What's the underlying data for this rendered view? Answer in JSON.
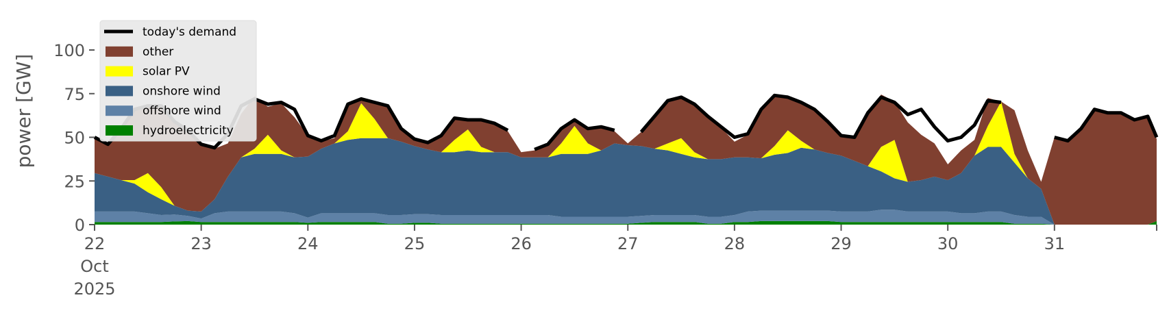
{
  "chart_data": {
    "type": "area",
    "ylabel": "power [GW]",
    "ylim": [
      0,
      120
    ],
    "y_ticks": [
      0,
      25,
      50,
      75,
      100
    ],
    "x_range": [
      "2025-10-22",
      "2025-10-31T23:00"
    ],
    "x_tick_labels": [
      {
        "date": "2025-10-22",
        "lines": [
          "22",
          "Oct",
          "2025"
        ]
      },
      {
        "date": "2025-10-23",
        "lines": [
          "23"
        ]
      },
      {
        "date": "2025-10-24",
        "lines": [
          "24"
        ]
      },
      {
        "date": "2025-10-25",
        "lines": [
          "25"
        ]
      },
      {
        "date": "2025-10-26",
        "lines": [
          "26"
        ]
      },
      {
        "date": "2025-10-27",
        "lines": [
          "27"
        ]
      },
      {
        "date": "2025-10-28",
        "lines": [
          "28"
        ]
      },
      {
        "date": "2025-10-29",
        "lines": [
          "29"
        ]
      },
      {
        "date": "2025-10-30",
        "lines": [
          "30"
        ]
      },
      {
        "date": "2025-10-31",
        "lines": [
          "31"
        ]
      }
    ],
    "grid": false,
    "legend_position": "top-left",
    "legend": [
      "today's demand",
      "other",
      "solar PV",
      "onshore wind",
      "offshore wind",
      "hydroelectricity"
    ],
    "x": [
      "2025-10-22T00:00",
      "2025-10-22T03:00",
      "2025-10-22T06:00",
      "2025-10-22T09:00",
      "2025-10-22T12:00",
      "2025-10-22T15:00",
      "2025-10-22T18:00",
      "2025-10-22T21:00",
      "2025-10-23T00:00",
      "2025-10-23T03:00",
      "2025-10-23T06:00",
      "2025-10-23T09:00",
      "2025-10-23T12:00",
      "2025-10-23T15:00",
      "2025-10-23T18:00",
      "2025-10-23T21:00",
      "2025-10-24T00:00",
      "2025-10-24T03:00",
      "2025-10-24T06:00",
      "2025-10-24T09:00",
      "2025-10-24T12:00",
      "2025-10-24T15:00",
      "2025-10-24T18:00",
      "2025-10-24T21:00",
      "2025-10-25T00:00",
      "2025-10-25T03:00",
      "2025-10-25T06:00",
      "2025-10-25T09:00",
      "2025-10-25T12:00",
      "2025-10-25T15:00",
      "2025-10-25T18:00",
      "2025-10-25T21:00",
      "2025-10-26T00:00",
      "2025-10-26T03:00",
      "2025-10-26T06:00",
      "2025-10-26T09:00",
      "2025-10-26T12:00",
      "2025-10-26T15:00",
      "2025-10-26T18:00",
      "2025-10-26T21:00",
      "2025-10-27T00:00",
      "2025-10-27T03:00",
      "2025-10-27T06:00",
      "2025-10-27T09:00",
      "2025-10-27T12:00",
      "2025-10-27T15:00",
      "2025-10-27T18:00",
      "2025-10-27T21:00",
      "2025-10-28T00:00",
      "2025-10-28T03:00",
      "2025-10-28T06:00",
      "2025-10-28T09:00",
      "2025-10-28T12:00",
      "2025-10-28T15:00",
      "2025-10-28T18:00",
      "2025-10-28T21:00",
      "2025-10-29T00:00",
      "2025-10-29T03:00",
      "2025-10-29T06:00",
      "2025-10-29T09:00",
      "2025-10-29T12:00",
      "2025-10-29T15:00",
      "2025-10-29T18:00",
      "2025-10-29T21:00",
      "2025-10-30T00:00",
      "2025-10-30T03:00",
      "2025-10-30T06:00",
      "2025-10-30T09:00",
      "2025-10-30T12:00",
      "2025-10-30T15:00",
      "2025-10-30T18:00",
      "2025-10-30T21:00",
      "2025-10-31T00:00",
      "2025-10-31T03:00",
      "2025-10-31T06:00",
      "2025-10-31T09:00",
      "2025-10-31T12:00",
      "2025-10-31T15:00",
      "2025-10-31T18:00",
      "2025-10-31T21:00",
      "2025-10-31T23:00"
    ],
    "series": [
      {
        "name": "hydroelectricity",
        "color": "#008000",
        "stacked": true,
        "values": [
          1.5,
          1.5,
          1.5,
          1.5,
          1.5,
          1.5,
          1.8,
          2,
          1.5,
          1.5,
          1.5,
          1.5,
          1.5,
          1.5,
          1.5,
          1.5,
          1,
          1.5,
          1.5,
          1.5,
          1.5,
          1.5,
          0.5,
          0.5,
          1,
          1,
          0.5,
          0.5,
          0.5,
          0.5,
          0.5,
          0.5,
          0.5,
          0.5,
          0.5,
          0.5,
          0.5,
          0.5,
          0.5,
          0.5,
          0.5,
          1,
          1.5,
          1.5,
          1.5,
          1.5,
          0.5,
          0.5,
          1.5,
          1.5,
          2,
          2,
          2,
          2,
          2,
          2,
          1.5,
          1.5,
          1.5,
          1.5,
          1.5,
          1.5,
          1.5,
          1.5,
          1.5,
          1.5,
          1.5,
          1.5,
          1.5,
          0.5,
          0.5,
          0.5,
          0,
          0,
          0,
          0,
          0,
          0,
          0,
          0,
          2
        ]
      },
      {
        "name": "offshore wind",
        "color": "#5e81a6",
        "stacked": true,
        "values": [
          6,
          6,
          6,
          6,
          5,
          4,
          4,
          3,
          2,
          5,
          6,
          6,
          6,
          6,
          6,
          5,
          3,
          5,
          5,
          5,
          5,
          5,
          5,
          5,
          5,
          5,
          5,
          5,
          5,
          5,
          5,
          5,
          5,
          5,
          5,
          4,
          4,
          4,
          4,
          4,
          4,
          4,
          4,
          4,
          4,
          4,
          4,
          4,
          4,
          6,
          6,
          6,
          6,
          6,
          6,
          6,
          6,
          6,
          6,
          7,
          7,
          6,
          6,
          6,
          6,
          5,
          5,
          6,
          6,
          5,
          4,
          4,
          0,
          0,
          0,
          0,
          0,
          0,
          0,
          0,
          0
        ]
      },
      {
        "name": "onshore wind",
        "color": "#3a6084",
        "stacked": true,
        "values": [
          22,
          20,
          18,
          16,
          12,
          9,
          5,
          3,
          4,
          8,
          20,
          31,
          33,
          33,
          33,
          32,
          35,
          37,
          40,
          42,
          43,
          43,
          44,
          42,
          39,
          37,
          36,
          36,
          37,
          36,
          36,
          36,
          33,
          33,
          33,
          36,
          36,
          36,
          38,
          42,
          41,
          40,
          38,
          37,
          35,
          33,
          33,
          33,
          33,
          31,
          30,
          32,
          33,
          36,
          35,
          33,
          32,
          29,
          26,
          22,
          18,
          17,
          18,
          20,
          18,
          23,
          33,
          37,
          37,
          30,
          22,
          16,
          0,
          0,
          0,
          0,
          0,
          0,
          0,
          0,
          0
        ]
      },
      {
        "name": "solar PV",
        "color": "#ffff00",
        "stacked": true,
        "values": [
          0,
          0,
          0,
          2,
          11,
          7,
          0,
          0,
          0,
          0,
          0,
          0,
          3,
          11,
          2,
          0,
          0,
          0,
          0,
          5,
          20,
          11,
          0,
          0,
          0,
          0,
          0,
          7,
          12,
          3,
          0,
          0,
          0,
          0,
          0,
          6,
          16,
          6,
          0,
          0,
          0,
          0,
          0,
          4,
          9,
          3,
          0,
          0,
          0,
          0,
          0,
          5,
          13,
          4,
          0,
          0,
          0,
          0,
          0,
          14,
          22,
          0,
          0,
          0,
          0,
          0,
          0,
          12,
          26,
          5,
          0,
          0,
          0,
          0,
          0,
          0,
          0,
          0,
          0,
          0,
          0
        ]
      },
      {
        "name": "other",
        "color": "#804030",
        "stacked": true,
        "values": [
          20,
          18,
          29,
          40,
          39,
          46,
          48,
          46,
          38,
          29,
          19,
          25,
          30,
          16,
          27,
          23,
          12,
          4,
          3,
          16,
          2,
          9,
          18,
          7,
          3,
          4,
          9,
          12,
          5,
          15,
          16,
          12,
          3,
          4,
          7,
          8,
          3,
          8,
          13,
          7,
          1,
          8,
          18,
          25,
          23,
          27,
          24,
          18,
          9,
          13,
          28,
          28,
          19,
          22,
          23,
          18,
          11,
          13,
          29,
          30,
          22,
          34,
          26,
          19,
          9,
          13,
          9,
          16,
          0,
          25,
          16,
          4,
          50,
          48,
          55,
          66,
          64,
          64,
          60,
          62,
          47
        ]
      },
      {
        "name": "today's demand",
        "color": "#000000",
        "type": "line",
        "values": [
          50,
          46,
          55,
          66,
          68,
          68,
          59,
          54,
          46,
          44,
          52,
          68,
          72,
          69,
          70,
          66,
          51,
          48,
          51,
          69,
          72,
          70,
          68,
          55,
          49,
          47,
          51,
          61,
          60,
          60,
          58,
          54,
          null,
          43,
          46,
          55,
          60,
          55,
          56,
          54,
          null,
          53,
          62,
          71,
          73,
          69,
          62,
          56,
          50,
          52,
          66,
          74,
          73,
          70,
          66,
          59,
          51,
          50,
          64,
          73,
          70,
          63,
          66,
          56,
          48,
          50,
          57,
          71,
          70,
          null,
          null,
          null,
          50,
          48,
          55,
          66,
          64,
          64,
          60,
          62,
          50
        ]
      }
    ]
  }
}
